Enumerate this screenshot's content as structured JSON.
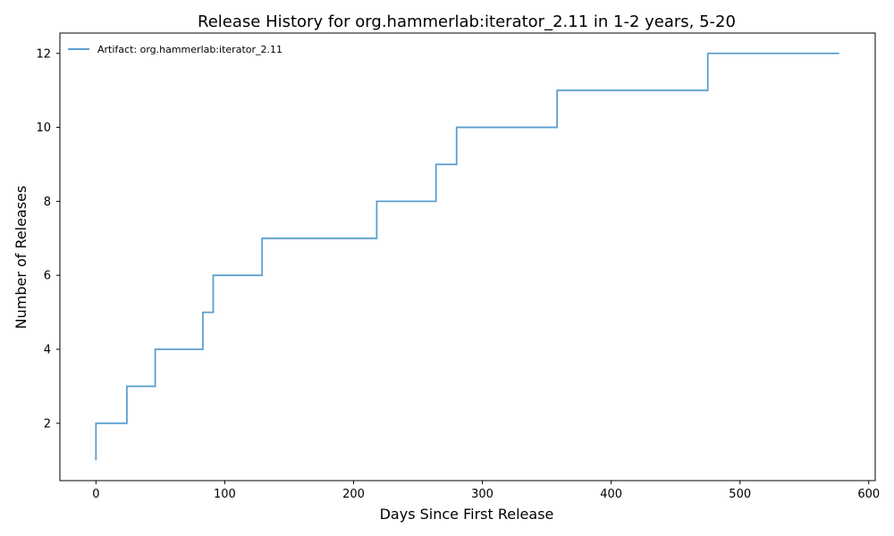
{
  "chart_data": {
    "type": "line",
    "title": "Release History for org.hammerlab:iterator_2.11 in 1-2 years, 5-20",
    "xlabel": "Days Since First Release",
    "ylabel": "Number of Releases",
    "xlim": [
      -28,
      605
    ],
    "ylim": [
      0.45,
      12.55
    ],
    "xticks": [
      0,
      100,
      200,
      300,
      400,
      500,
      600
    ],
    "yticks": [
      2,
      4,
      6,
      8,
      10,
      12
    ],
    "grid": false,
    "legend_position": "top-left",
    "colors": {
      "line": "#5b9fcf"
    },
    "series": [
      {
        "name": "Artifact: org.hammerlab:iterator_2.11",
        "step": "post",
        "x": [
          0,
          0,
          24,
          46,
          83,
          91,
          129,
          218,
          264,
          280,
          358,
          475,
          577
        ],
        "y": [
          1,
          2,
          3,
          4,
          5,
          6,
          7,
          8,
          9,
          10,
          11,
          12,
          12
        ]
      }
    ]
  }
}
